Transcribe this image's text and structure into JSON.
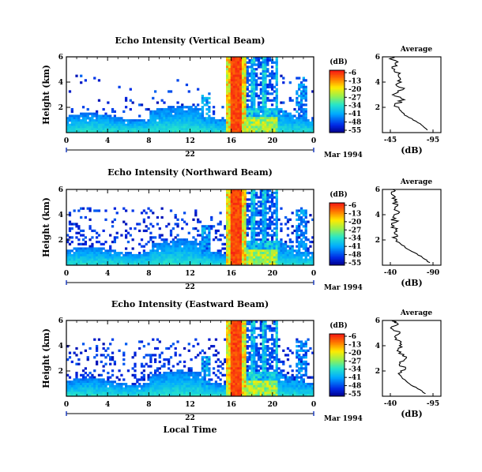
{
  "chart_data": [
    {
      "type": "heatmap",
      "title": "Echo Intensity (Vertical Beam)",
      "ylabel": "Height (km)",
      "x_ticks": [
        "0",
        "4",
        "8",
        "12",
        "16",
        "20",
        "0"
      ],
      "y_ticks": [
        "6",
        "4",
        "2"
      ],
      "day_label": "22",
      "date_label": "Mar 1994",
      "colorbar": {
        "unit": "(dB)",
        "ticks": [
          "-6",
          "-13",
          "-20",
          "-27",
          "-34",
          "-41",
          "-48",
          "-55"
        ]
      },
      "avg_profile": {
        "title": "Average",
        "xlabel": "(dB)",
        "x_ticks": [
          "-45",
          "-95"
        ],
        "y_ticks": [
          "6",
          "4",
          "2"
        ],
        "height_km": [
          0.2,
          0.6,
          1.0,
          1.4,
          1.8,
          2.2,
          2.6,
          3.0,
          3.4,
          3.8,
          4.2,
          4.6,
          5.0,
          5.4,
          5.8,
          6.0
        ],
        "db": [
          -88,
          -82,
          -72,
          -62,
          -56,
          -52,
          -58,
          -50,
          -60,
          -52,
          -58,
          -55,
          -48,
          -53,
          -48,
          -47
        ]
      }
    },
    {
      "type": "heatmap",
      "title": "Echo Intensity (Northward Beam)",
      "ylabel": "Height (km)",
      "x_ticks": [
        "0",
        "4",
        "8",
        "12",
        "16",
        "20",
        "0"
      ],
      "y_ticks": [
        "6",
        "4",
        "2"
      ],
      "day_label": "22",
      "date_label": "Mar 1994",
      "colorbar": {
        "unit": "(dB)",
        "ticks": [
          "-6",
          "-13",
          "-20",
          "-27",
          "-34",
          "-41",
          "-48",
          "-55"
        ]
      },
      "avg_profile": {
        "title": "Average",
        "xlabel": "(dB)",
        "x_ticks": [
          "-40",
          "-90"
        ],
        "y_ticks": [
          "6",
          "4",
          "2"
        ],
        "height_km": [
          0.2,
          0.6,
          1.0,
          1.4,
          1.8,
          2.2,
          2.6,
          3.0,
          3.4,
          3.8,
          4.2,
          4.6,
          5.0,
          5.4,
          5.8,
          6.0
        ],
        "db": [
          -86,
          -78,
          -68,
          -58,
          -50,
          -45,
          -48,
          -44,
          -46,
          -43,
          -48,
          -44,
          -46,
          -42,
          -44,
          -43
        ]
      }
    },
    {
      "type": "heatmap",
      "title": "Echo Intensity (Eastward Beam)",
      "ylabel": "Height (km)",
      "xlabel": "Local Time",
      "x_ticks": [
        "0",
        "4",
        "8",
        "12",
        "16",
        "20",
        "0"
      ],
      "y_ticks": [
        "6",
        "4",
        "2"
      ],
      "day_label": "22",
      "date_label": "Mar 1994",
      "colorbar": {
        "unit": "(dB)",
        "ticks": [
          "-6",
          "-13",
          "-20",
          "-27",
          "-34",
          "-41",
          "-48",
          "-55"
        ]
      },
      "avg_profile": {
        "title": "Average",
        "xlabel": "(dB)",
        "x_ticks": [
          "-40",
          "-95"
        ],
        "y_ticks": [
          "6",
          "4",
          "2"
        ],
        "height_km": [
          0.2,
          0.6,
          1.0,
          1.4,
          1.8,
          2.2,
          2.6,
          3.0,
          3.4,
          3.8,
          4.2,
          4.6,
          5.0,
          5.4,
          5.8,
          6.0
        ],
        "db": [
          -85,
          -76,
          -64,
          -56,
          -50,
          -60,
          -52,
          -58,
          -54,
          -50,
          -56,
          -48,
          -52,
          -44,
          -48,
          -42
        ]
      }
    }
  ]
}
